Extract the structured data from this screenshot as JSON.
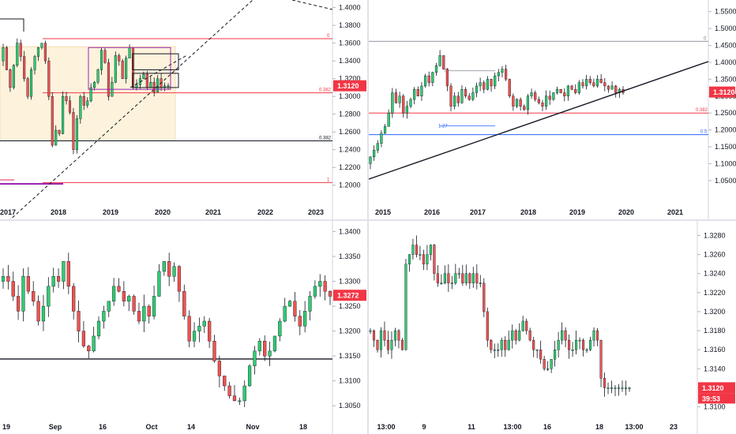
{
  "colors": {
    "up": "#26a69a",
    "up_fill": "#2ecc71",
    "down": "#ef5350",
    "price_badge": "#f23645",
    "grid": "#f0f3fa",
    "axis_line": "#d1d4dc",
    "fib_red": "#f23645",
    "fib_blue": "#2962ff",
    "rect_fill": "#fdf3dc",
    "rect_stroke": "#f5deb3",
    "purple": "#9c27b0",
    "pink": "#e91e63"
  },
  "chart_data": [
    {
      "id": "top-left",
      "type": "candlestick",
      "timeframe_hint": "monthly",
      "y_ticks": [
        "1.4000",
        "1.3800",
        "1.3600",
        "1.3400",
        "1.3200",
        "1.3000",
        "1.2800",
        "1.2600",
        "1.2400",
        "1.2200",
        "1.2000"
      ],
      "ylim": [
        1.19,
        1.405
      ],
      "x_ticks": [
        "2017",
        "2018",
        "2019",
        "2020",
        "2021",
        "2022",
        "2023"
      ],
      "last_price": "1.3120",
      "fib_labels": [
        "0",
        "0.382",
        "0.382",
        "1"
      ],
      "closes": [
        1.355,
        1.33,
        1.31,
        1.335,
        1.36,
        1.345,
        1.32,
        1.3,
        1.33,
        1.345,
        1.355,
        1.36,
        1.34,
        1.3,
        1.245,
        1.262,
        1.258,
        1.3,
        1.295,
        1.282,
        1.24,
        1.275,
        1.3,
        1.29,
        1.295,
        1.31,
        1.316,
        1.33,
        1.352,
        1.338,
        1.3,
        1.316,
        1.346,
        1.34,
        1.32,
        1.343,
        1.355,
        1.31,
        1.313,
        1.32,
        1.325,
        1.31,
        1.316,
        1.305,
        1.32,
        1.31,
        1.312,
        1.312
      ]
    },
    {
      "id": "top-right",
      "type": "candlestick",
      "timeframe_hint": "weekly",
      "y_ticks": [
        "1.5500",
        "1.5000",
        "1.4500",
        "1.4000",
        "1.3500",
        "1.3000",
        "1.2500",
        "1.2000",
        "1.1500",
        "1.1000",
        "1.0500"
      ],
      "ylim": [
        1.01,
        1.575
      ],
      "x_ticks": [
        "2015",
        "2016",
        "2017",
        "2018",
        "2019",
        "2020",
        "2021"
      ],
      "last_price": "1.3120",
      "fib_labels": [
        "0",
        "0.382",
        "0.5",
        "0",
        "1.27"
      ],
      "closes": [
        1.12,
        1.14,
        1.16,
        1.19,
        1.21,
        1.25,
        1.31,
        1.28,
        1.3,
        1.25,
        1.27,
        1.29,
        1.32,
        1.3,
        1.33,
        1.36,
        1.34,
        1.37,
        1.39,
        1.42,
        1.38,
        1.33,
        1.27,
        1.3,
        1.28,
        1.32,
        1.3,
        1.29,
        1.31,
        1.33,
        1.34,
        1.32,
        1.35,
        1.33,
        1.36,
        1.37,
        1.38,
        1.35,
        1.3,
        1.27,
        1.29,
        1.27,
        1.26,
        1.3,
        1.31,
        1.29,
        1.28,
        1.27,
        1.3,
        1.29,
        1.31,
        1.32,
        1.31,
        1.3,
        1.33,
        1.32,
        1.31,
        1.34,
        1.33,
        1.35,
        1.34,
        1.33,
        1.35,
        1.34,
        1.33,
        1.32,
        1.33,
        1.31,
        1.32,
        1.31
      ]
    },
    {
      "id": "bottom-left",
      "type": "candlestick",
      "timeframe_hint": "daily",
      "y_ticks": [
        "1.3400",
        "1.3350",
        "1.3300",
        "1.3250",
        "1.3200",
        "1.3150",
        "1.3100",
        "1.3050"
      ],
      "ylim": [
        1.3025,
        1.3415
      ],
      "x_ticks": [
        "19",
        "Sep",
        "16",
        "Oct",
        "14",
        "Nov",
        "18"
      ],
      "last_price": "1.3272",
      "hline": 1.3144,
      "closes": [
        1.331,
        1.33,
        1.327,
        1.324,
        1.331,
        1.328,
        1.326,
        1.322,
        1.325,
        1.329,
        1.331,
        1.33,
        1.334,
        1.329,
        1.324,
        1.32,
        1.317,
        1.316,
        1.319,
        1.322,
        1.324,
        1.326,
        1.329,
        1.328,
        1.326,
        1.327,
        1.324,
        1.322,
        1.325,
        1.323,
        1.327,
        1.332,
        1.334,
        1.331,
        1.333,
        1.328,
        1.323,
        1.318,
        1.32,
        1.321,
        1.322,
        1.318,
        1.314,
        1.311,
        1.309,
        1.307,
        1.306,
        1.306,
        1.309,
        1.313,
        1.316,
        1.318,
        1.315,
        1.316,
        1.319,
        1.322,
        1.325,
        1.326,
        1.323,
        1.321,
        1.324,
        1.327,
        1.329,
        1.33,
        1.328,
        1.327
      ]
    },
    {
      "id": "bottom-right",
      "type": "candlestick",
      "timeframe_hint": "hourly",
      "y_ticks": [
        "1.3280",
        "1.3260",
        "1.3240",
        "1.3220",
        "1.3200",
        "1.3180",
        "1.3160",
        "1.3140",
        "1.3120",
        "1.3100"
      ],
      "ylim": [
        1.3088,
        1.3292
      ],
      "x_ticks": [
        "13:00",
        "9",
        "11",
        "13:00",
        "16",
        "18",
        "13:00",
        "23"
      ],
      "last_price": "1.3120",
      "countdown": "39:53",
      "closes": [
        1.318,
        1.317,
        1.316,
        1.318,
        1.317,
        1.316,
        1.317,
        1.318,
        1.317,
        1.316,
        1.325,
        1.326,
        1.327,
        1.326,
        1.326,
        1.325,
        1.326,
        1.327,
        1.324,
        1.323,
        1.323,
        1.324,
        1.323,
        1.323,
        1.324,
        1.324,
        1.323,
        1.324,
        1.323,
        1.324,
        1.323,
        1.323,
        1.32,
        1.317,
        1.316,
        1.316,
        1.316,
        1.317,
        1.316,
        1.317,
        1.318,
        1.317,
        1.318,
        1.319,
        1.318,
        1.317,
        1.316,
        1.316,
        1.315,
        1.314,
        1.314,
        1.315,
        1.316,
        1.317,
        1.318,
        1.317,
        1.316,
        1.316,
        1.317,
        1.317,
        1.316,
        1.316,
        1.317,
        1.318,
        1.317,
        1.313,
        1.312,
        1.312,
        1.312,
        1.312,
        1.312,
        1.312,
        1.312,
        1.312
      ]
    }
  ]
}
